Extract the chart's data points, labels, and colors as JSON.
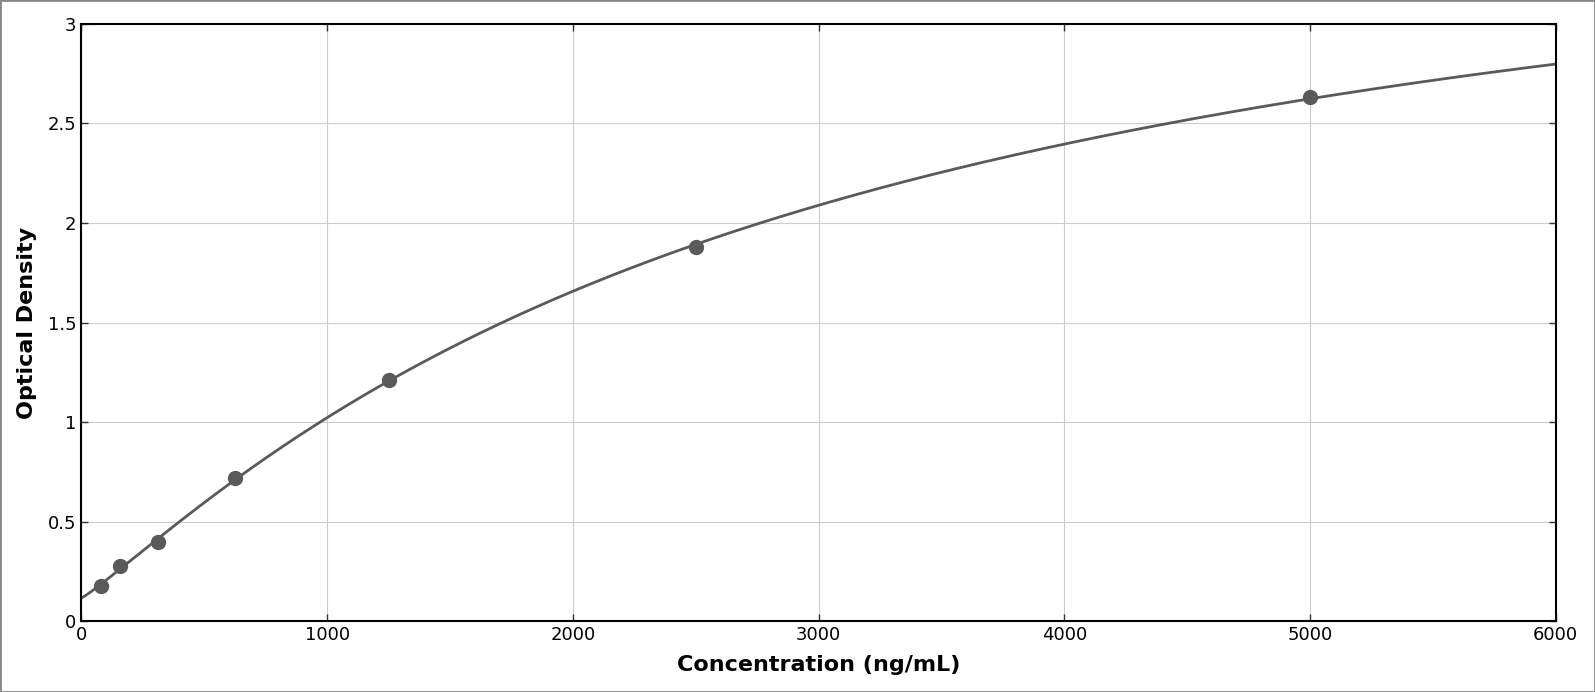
{
  "x_data": [
    78,
    156,
    313,
    625,
    1250,
    2500,
    5000
  ],
  "y_data": [
    0.175,
    0.28,
    0.4,
    0.72,
    1.21,
    1.88,
    2.63
  ],
  "xlabel": "Concentration (ng/mL)",
  "ylabel": "Optical Density",
  "xlim": [
    0,
    6000
  ],
  "ylim": [
    0,
    3
  ],
  "xticks": [
    0,
    1000,
    2000,
    3000,
    4000,
    5000,
    6000
  ],
  "yticks": [
    0,
    0.5,
    1.0,
    1.5,
    2.0,
    2.5,
    3.0
  ],
  "marker_color": "#5a5a5a",
  "line_color": "#5a5a5a",
  "background_color": "#ffffff",
  "grid_color": "#cccccc",
  "border_color": "#000000",
  "marker_size": 10,
  "line_width": 2.0,
  "xlabel_fontsize": 16,
  "ylabel_fontsize": 16,
  "tick_fontsize": 13,
  "figure_bg": "#ffffff",
  "outer_border_color": "#888888",
  "outer_border_linewidth": 1.5
}
